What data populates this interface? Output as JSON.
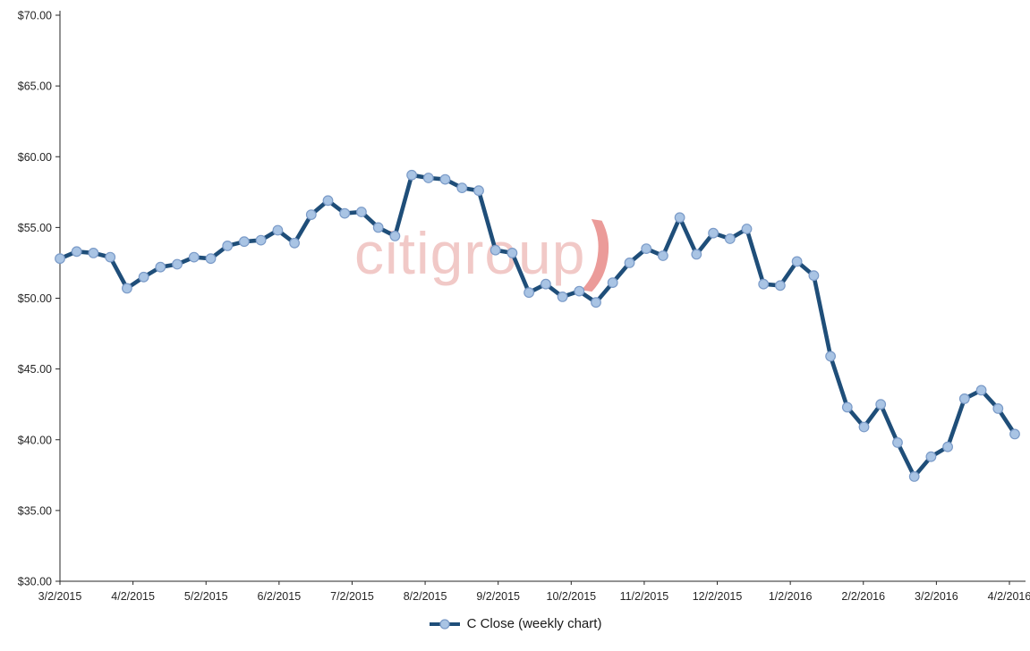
{
  "chart_data": {
    "type": "line",
    "title": "",
    "series": [
      {
        "name": "C Close (weekly chart)",
        "values": [
          52.8,
          53.3,
          53.2,
          52.9,
          50.7,
          51.5,
          52.2,
          52.4,
          52.9,
          52.8,
          53.7,
          54.0,
          54.1,
          54.8,
          53.9,
          55.9,
          56.9,
          56.0,
          56.1,
          55.0,
          54.4,
          58.7,
          58.5,
          58.4,
          57.8,
          57.6,
          53.4,
          53.2,
          50.4,
          51.0,
          50.1,
          50.5,
          49.7,
          51.1,
          52.5,
          53.5,
          53.0,
          55.7,
          53.1,
          54.6,
          54.2,
          54.9,
          51.0,
          50.9,
          52.6,
          51.6,
          45.9,
          42.3,
          40.9,
          42.5,
          39.8,
          37.4,
          38.8,
          39.5,
          42.9,
          43.5,
          42.2,
          40.4
        ]
      }
    ],
    "x_tick_labels": [
      "3/2/2015",
      "4/2/2015",
      "5/2/2015",
      "6/2/2015",
      "7/2/2015",
      "8/2/2015",
      "9/2/2015",
      "10/2/2015",
      "11/2/2015",
      "12/2/2015",
      "1/2/2016",
      "2/2/2016",
      "3/2/2016",
      "4/2/2016"
    ],
    "y_ticks": [
      {
        "value": 70,
        "label": "$70.00"
      },
      {
        "value": 65,
        "label": "$65.00"
      },
      {
        "value": 60,
        "label": "$60.00"
      },
      {
        "value": 55,
        "label": "$55.00"
      },
      {
        "value": 50,
        "label": "$50.00"
      },
      {
        "value": 45,
        "label": "$45.00"
      },
      {
        "value": 40,
        "label": "$40.00"
      },
      {
        "value": 35,
        "label": "$35.00"
      },
      {
        "value": 30,
        "label": "$30.00"
      }
    ],
    "ylim": [
      30,
      70
    ],
    "grid": false,
    "legend_position": "bottom",
    "colors": {
      "line": "#1F4E79",
      "marker_fill": "#A9C4E4",
      "marker_stroke": "#7B9BC8",
      "axis": "#262626",
      "tick_text": "#262626"
    }
  },
  "legend": {
    "label": "C Close (weekly chart)"
  },
  "watermark": {
    "text": "citigroup",
    "arc_glyph": ")",
    "text_color": "#E79D9B",
    "arc_color": "#DC4B47"
  }
}
